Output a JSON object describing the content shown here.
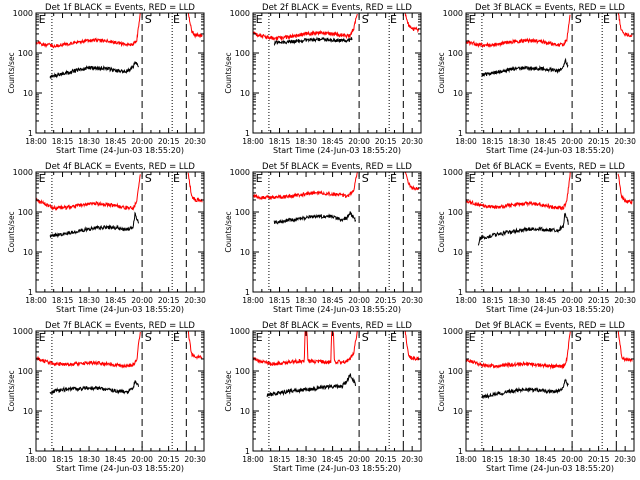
{
  "chart_data": {
    "type": "line",
    "y_scale": "log",
    "ylim": [
      1,
      1000
    ],
    "xlim": [
      0,
      95
    ],
    "x_tick_labels": [
      "18:00",
      "18:15",
      "18:30",
      "18:45",
      "20:00",
      "20:15",
      "20:30"
    ],
    "x_tick_minutes": [
      0,
      15,
      30,
      45,
      60,
      75,
      90
    ],
    "y_tick_labels": [
      "1",
      "10",
      "100",
      "1000"
    ],
    "y_tick_values": [
      1,
      10,
      100,
      1000
    ],
    "xlabel": "Start Time (24-Jun-03 18:55:20)",
    "ylabel": "Counts/sec",
    "dotted_line_minutes": [
      9,
      77
    ],
    "dashed_line_minutes": [
      60,
      85
    ],
    "marker_labels": [
      {
        "text": "E",
        "minute": 1.5
      },
      {
        "text": "S",
        "minute": 61.5
      },
      {
        "text": "E",
        "minute": 77.5
      }
    ],
    "panels": [
      {
        "title": "Det  1f BLACK = Events, RED = LLD",
        "series": [
          {
            "name": "Events",
            "color": "#000000",
            "range": [
              8,
              58
            ],
            "x": [
              8,
              15,
              22,
              30,
              38,
              46,
              52,
              55,
              56,
              58
            ],
            "y": [
              25,
              30,
              36,
              43,
              42,
              36,
              36,
              44,
              60,
              48
            ]
          },
          {
            "name": "LLD",
            "color": "#ff0000",
            "range": [
              0,
              59
            ],
            "x": [
              0,
              5,
              10,
              18,
              26,
              34,
              42,
              50,
              55,
              57,
              59
            ],
            "y": [
              180,
              165,
              150,
              165,
              195,
              210,
              195,
              165,
              160,
              210,
              1000
            ]
          },
          {
            "name": "LLD-post",
            "color": "#ff0000",
            "range": [
              86,
              94
            ],
            "x": [
              86,
              87,
              88,
              90,
              94
            ],
            "y": [
              1000,
              600,
              350,
              280,
              270
            ]
          }
        ]
      },
      {
        "title": "Det  2f BLACK = Events, RED = LLD",
        "series": [
          {
            "name": "Events",
            "color": "#000000",
            "range": [
              12,
              56
            ],
            "x": [
              12,
              20,
              30,
              40,
              50,
              55,
              56
            ],
            "y": [
              180,
              190,
              210,
              220,
              205,
              210,
              230
            ]
          },
          {
            "name": "LLD",
            "color": "#ff0000",
            "range": [
              0,
              59
            ],
            "x": [
              0,
              6,
              12,
              20,
              30,
              40,
              50,
              55,
              57,
              59
            ],
            "y": [
              310,
              260,
              230,
              250,
              300,
              320,
              280,
              260,
              400,
              1000
            ]
          },
          {
            "name": "LLD-post",
            "color": "#ff0000",
            "range": [
              86,
              94
            ],
            "x": [
              86,
              87,
              88,
              90,
              94
            ],
            "y": [
              1000,
              700,
              500,
              400,
              380
            ]
          }
        ]
      },
      {
        "title": "Det  3f BLACK = Events, RED = LLD",
        "series": [
          {
            "name": "Events",
            "color": "#000000",
            "range": [
              9,
              58
            ],
            "x": [
              9,
              16,
              24,
              32,
              40,
              48,
              52,
              55,
              56,
              58
            ],
            "y": [
              28,
              32,
              38,
              42,
              42,
              38,
              36,
              42,
              70,
              45
            ]
          },
          {
            "name": "LLD",
            "color": "#ff0000",
            "range": [
              0,
              59
            ],
            "x": [
              0,
              5,
              10,
              18,
              26,
              34,
              42,
              50,
              55,
              57,
              59
            ],
            "y": [
              190,
              170,
              155,
              165,
              190,
              205,
              195,
              165,
              160,
              220,
              1000
            ]
          },
          {
            "name": "LLD-post",
            "color": "#ff0000",
            "range": [
              86,
              94
            ],
            "x": [
              86,
              87,
              88,
              90,
              94
            ],
            "y": [
              1000,
              600,
              350,
              290,
              280
            ]
          }
        ]
      },
      {
        "title": "Det  4f BLACK = Events, RED = LLD",
        "series": [
          {
            "name": "Events",
            "color": "#000000",
            "range": [
              8,
              58
            ],
            "x": [
              8,
              15,
              22,
              30,
              38,
              46,
              52,
              55,
              56,
              58
            ],
            "y": [
              25,
              28,
              32,
              38,
              42,
              40,
              36,
              44,
              90,
              50
            ]
          },
          {
            "name": "LLD",
            "color": "#ff0000",
            "range": [
              0,
              59
            ],
            "x": [
              0,
              5,
              10,
              18,
              26,
              34,
              42,
              50,
              55,
              57,
              59
            ],
            "y": [
              200,
              160,
              125,
              130,
              150,
              165,
              150,
              130,
              125,
              180,
              1000
            ]
          },
          {
            "name": "LLD-post",
            "color": "#ff0000",
            "range": [
              86,
              94
            ],
            "x": [
              86,
              87,
              88,
              90,
              94
            ],
            "y": [
              1000,
              500,
              250,
              200,
              190
            ]
          }
        ]
      },
      {
        "title": "Det  5f BLACK = Events, RED = LLD",
        "series": [
          {
            "name": "Events",
            "color": "#000000",
            "range": [
              12,
              58
            ],
            "x": [
              12,
              20,
              28,
              36,
              44,
              50,
              53,
              55,
              58
            ],
            "y": [
              55,
              62,
              70,
              78,
              78,
              65,
              70,
              95,
              60
            ]
          },
          {
            "name": "LLD",
            "color": "#ff0000",
            "range": [
              0,
              59
            ],
            "x": [
              0,
              8,
              16,
              24,
              32,
              40,
              48,
              54,
              57,
              59
            ],
            "y": [
              240,
              230,
              235,
              255,
              290,
              300,
              270,
              250,
              350,
              1000
            ]
          },
          {
            "name": "LLD-post",
            "color": "#ff0000",
            "range": [
              86,
              94
            ],
            "x": [
              86,
              87,
              88,
              90,
              94
            ],
            "y": [
              1000,
              700,
              500,
              400,
              380
            ]
          }
        ]
      },
      {
        "title": "Det  6f BLACK = Events, RED = LLD",
        "series": [
          {
            "name": "Events",
            "color": "#000000",
            "range": [
              7,
              58
            ],
            "x": [
              7,
              8,
              15,
              22,
              30,
              38,
              46,
              52,
              55,
              56,
              58
            ],
            "y": [
              16,
              22,
              26,
              30,
              35,
              38,
              36,
              35,
              45,
              95,
              50
            ]
          },
          {
            "name": "LLD",
            "color": "#ff0000",
            "range": [
              0,
              59
            ],
            "x": [
              0,
              5,
              10,
              18,
              26,
              34,
              42,
              50,
              55,
              57,
              59
            ],
            "y": [
              190,
              160,
              140,
              130,
              150,
              165,
              155,
              130,
              125,
              180,
              1000
            ]
          },
          {
            "name": "LLD-post",
            "color": "#ff0000",
            "range": [
              86,
              94
            ],
            "x": [
              86,
              87,
              88,
              90,
              94
            ],
            "y": [
              1000,
              500,
              230,
              190,
              180
            ]
          }
        ]
      },
      {
        "title": "Det  7f BLACK = Events, RED = LLD",
        "series": [
          {
            "name": "Events",
            "color": "#000000",
            "range": [
              8,
              58
            ],
            "x": [
              8,
              15,
              22,
              30,
              38,
              46,
              52,
              55,
              56,
              58
            ],
            "y": [
              30,
              34,
              36,
              38,
              36,
              32,
              30,
              38,
              55,
              42
            ]
          },
          {
            "name": "LLD",
            "color": "#ff0000",
            "range": [
              0,
              59
            ],
            "x": [
              0,
              5,
              10,
              18,
              26,
              34,
              42,
              50,
              55,
              57,
              59
            ],
            "y": [
              210,
              175,
              150,
              145,
              155,
              160,
              145,
              135,
              140,
              200,
              1000
            ]
          },
          {
            "name": "LLD-post",
            "color": "#ff0000",
            "range": [
              86,
              94
            ],
            "x": [
              86,
              87,
              88,
              90,
              94
            ],
            "y": [
              1000,
              500,
              260,
              230,
              220
            ]
          }
        ]
      },
      {
        "title": "Det  8f BLACK = Events, RED = LLD",
        "series": [
          {
            "name": "Events",
            "color": "#000000",
            "range": [
              8,
              58
            ],
            "x": [
              8,
              15,
              22,
              30,
              38,
              46,
              50,
              53,
              55,
              58
            ],
            "y": [
              25,
              28,
              32,
              34,
              38,
              42,
              40,
              55,
              80,
              45
            ]
          },
          {
            "name": "LLD",
            "color": "#ff0000",
            "range": [
              0,
              59
            ],
            "x": [
              0,
              5,
              10,
              18,
              25,
              29,
              29.5,
              30.5,
              31,
              35,
              42,
              44,
              44.5,
              45.5,
              46,
              52,
              55,
              57,
              59
            ],
            "y": [
              200,
              170,
              150,
              160,
              175,
              180,
              1000,
              1000,
              180,
              170,
              170,
              170,
              1000,
              1000,
              170,
              170,
              200,
              300,
              1000
            ]
          },
          {
            "name": "LLD-post",
            "color": "#ff0000",
            "range": [
              86,
              94
            ],
            "x": [
              86,
              87,
              88,
              90,
              94
            ],
            "y": [
              1000,
              500,
              240,
              210,
              200
            ]
          }
        ]
      },
      {
        "title": "Det  9f BLACK = Events, RED = LLD",
        "series": [
          {
            "name": "Events",
            "color": "#000000",
            "range": [
              9,
              58
            ],
            "x": [
              9,
              16,
              24,
              32,
              40,
              48,
              52,
              55,
              56,
              58
            ],
            "y": [
              22,
              26,
              30,
              34,
              34,
              30,
              32,
              40,
              60,
              40
            ]
          },
          {
            "name": "LLD",
            "color": "#ff0000",
            "range": [
              0,
              59
            ],
            "x": [
              0,
              5,
              10,
              18,
              26,
              34,
              42,
              50,
              55,
              57,
              59
            ],
            "y": [
              190,
              160,
              140,
              135,
              145,
              150,
              140,
              130,
              130,
              190,
              1000
            ]
          },
          {
            "name": "LLD-post",
            "color": "#ff0000",
            "range": [
              86,
              94
            ],
            "x": [
              86,
              87,
              88,
              90,
              94
            ],
            "y": [
              1000,
              500,
              220,
              200,
              190
            ]
          }
        ]
      }
    ]
  }
}
